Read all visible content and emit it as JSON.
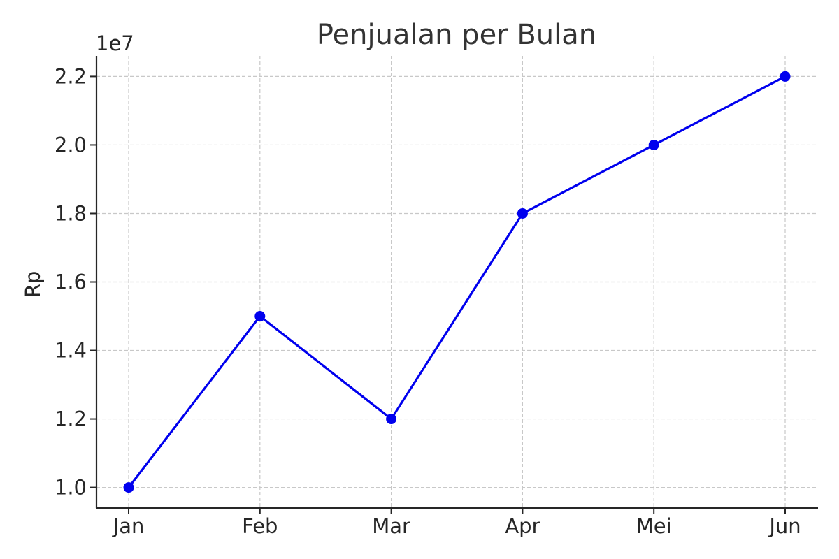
{
  "chart_data": {
    "type": "line",
    "title": "Penjualan per Bulan",
    "xlabel": "",
    "ylabel": "Rp",
    "y_offset_label": "1e7",
    "categories": [
      "Jan",
      "Feb",
      "Mar",
      "Apr",
      "Mei",
      "Jun"
    ],
    "series": [
      {
        "values": [
          10000000,
          15000000,
          12000000,
          18000000,
          20000000,
          22000000
        ],
        "color": "#0000ee"
      }
    ],
    "ylim": [
      9400000,
      22600000
    ],
    "yticks": [
      10000000,
      12000000,
      14000000,
      16000000,
      18000000,
      20000000,
      22000000
    ],
    "ytick_labels": [
      "1.0",
      "1.2",
      "1.4",
      "1.6",
      "1.8",
      "2.0",
      "2.2"
    ],
    "grid": true,
    "marker": "circle"
  }
}
